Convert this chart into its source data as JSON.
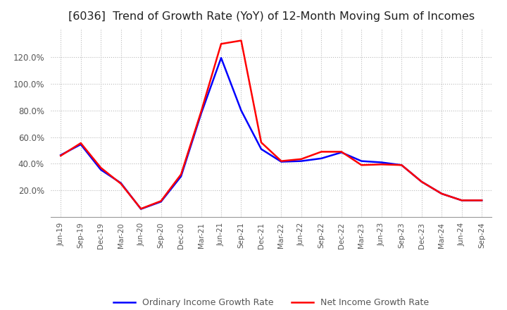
{
  "title": "[6036]  Trend of Growth Rate (YoY) of 12-Month Moving Sum of Incomes",
  "title_fontsize": 11.5,
  "title_fontweight": "normal",
  "ylim": [
    0.0,
    1.42
  ],
  "yticks": [
    0.2,
    0.4,
    0.6,
    0.8,
    1.0,
    1.2
  ],
  "ytick_labels": [
    "20.0%",
    "40.0%",
    "60.0%",
    "80.0%",
    "100.0%",
    "120.0%"
  ],
  "x_labels": [
    "Jun-19",
    "Sep-19",
    "Dec-19",
    "Mar-20",
    "Jun-20",
    "Sep-20",
    "Dec-20",
    "Mar-21",
    "Jun-21",
    "Sep-21",
    "Dec-21",
    "Mar-22",
    "Jun-22",
    "Sep-22",
    "Dec-22",
    "Mar-23",
    "Jun-23",
    "Sep-23",
    "Dec-23",
    "Mar-24",
    "Jun-24",
    "Sep-24"
  ],
  "ordinary_income": [
    0.465,
    0.545,
    0.355,
    0.255,
    0.06,
    0.115,
    0.305,
    0.775,
    1.195,
    0.8,
    0.51,
    0.415,
    0.42,
    0.44,
    0.485,
    0.42,
    0.41,
    0.39,
    0.265,
    0.175,
    0.125,
    0.125
  ],
  "net_income": [
    0.46,
    0.555,
    0.37,
    0.25,
    0.062,
    0.12,
    0.32,
    0.79,
    1.3,
    1.325,
    0.56,
    0.42,
    0.435,
    0.49,
    0.49,
    0.39,
    0.395,
    0.39,
    0.265,
    0.175,
    0.125,
    0.125
  ],
  "ordinary_color": "#0000ff",
  "net_color": "#ff0000",
  "line_width": 1.8,
  "grid_color": "#bbbbbb",
  "grid_linestyle": ":",
  "background_color": "#ffffff",
  "plot_bg_color": "#ffffff",
  "tick_color": "#555555",
  "title_color": "#222222",
  "legend_labels": [
    "Ordinary Income Growth Rate",
    "Net Income Growth Rate"
  ]
}
